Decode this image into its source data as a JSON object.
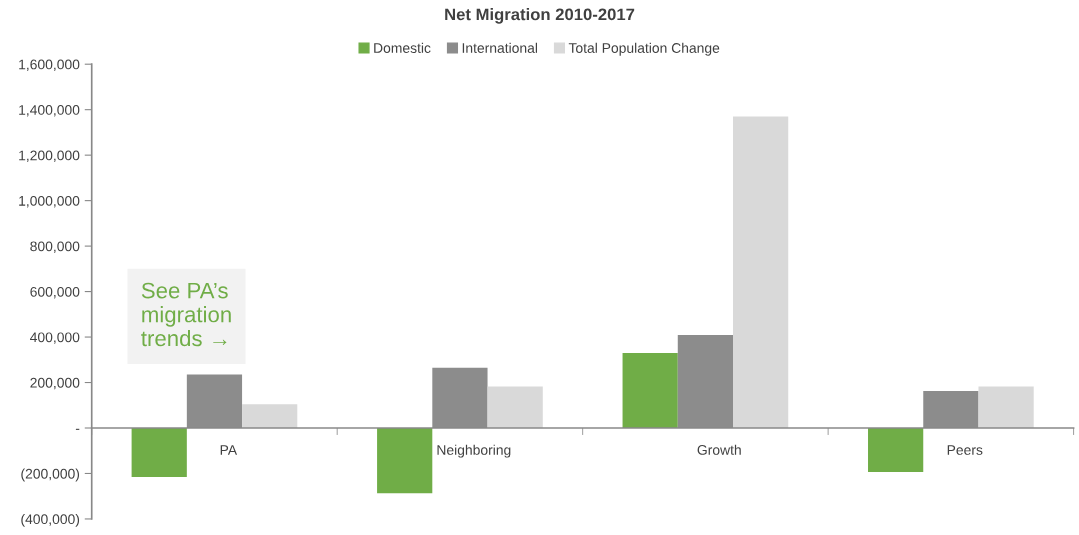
{
  "chart_data": {
    "type": "bar",
    "title": "Net Migration 2010-2017",
    "categories": [
      "PA",
      "Neighboring",
      "Growth",
      "Peers"
    ],
    "series": [
      {
        "name": "Domestic",
        "color": "#70ad47",
        "values": [
          -215000,
          -287000,
          330000,
          -193000
        ]
      },
      {
        "name": "International",
        "color": "#8c8c8c",
        "values": [
          235000,
          265000,
          409000,
          163000
        ]
      },
      {
        "name": "Total Population Change",
        "color": "#d9d9d9",
        "values": [
          104000,
          183000,
          1370000,
          183000
        ]
      }
    ],
    "ylim": [
      -400000,
      1600000
    ],
    "yticks": [
      {
        "value": -400000,
        "label": "(400,000)"
      },
      {
        "value": -200000,
        "label": "(200,000)"
      },
      {
        "value": 0,
        "label": "-"
      },
      {
        "value": 200000,
        "label": "200,000"
      },
      {
        "value": 400000,
        "label": "400,000"
      },
      {
        "value": 600000,
        "label": "600,000"
      },
      {
        "value": 800000,
        "label": "800,000"
      },
      {
        "value": 1000000,
        "label": "1,000,000"
      },
      {
        "value": 1200000,
        "label": "1,200,000"
      },
      {
        "value": 1400000,
        "label": "1,400,000"
      },
      {
        "value": 1600000,
        "label": "1,600,000"
      }
    ],
    "annotations": [
      "See PA’s migration trends →"
    ],
    "legend": "top",
    "grid": false
  }
}
